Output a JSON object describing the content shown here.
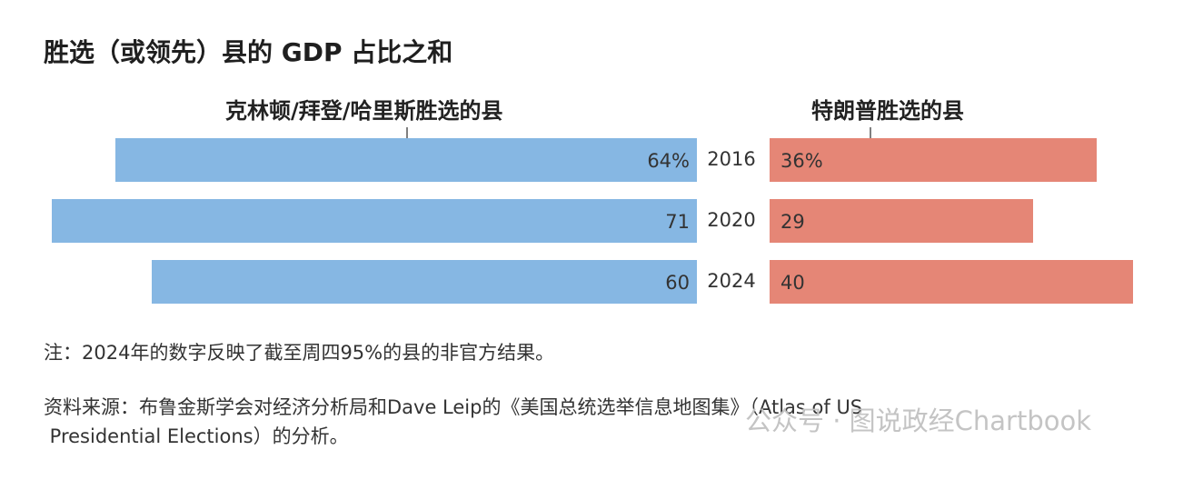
{
  "title": "胜选（或领先）县的 GDP 占比之和",
  "left_header": "克林顿/拜登/哈里斯胜选的县",
  "right_header": "特朗普胜选的县",
  "note": "注：2024年的数字反映了截至周四95%的县的非官方结果。",
  "source_line1": "资料来源：布鲁金斯学会对经济分析局和Dave Leip的《美国总统选举信息地图集》（Atlas of US",
  "source_line2": " Presidential Elections）的分析。",
  "watermark": "公众号 · 图说政经Chartbook",
  "colors": {
    "dem": "#86b7e3",
    "rep": "#e58676"
  },
  "chart_data": {
    "type": "bar",
    "orientation": "horizontal-diverging",
    "categories": [
      "2016",
      "2020",
      "2024"
    ],
    "series": [
      {
        "name": "克林顿/拜登/哈里斯胜选的县",
        "values": [
          64,
          71,
          60
        ],
        "labels": [
          "64%",
          "71",
          "60"
        ]
      },
      {
        "name": "特朗普胜选的县",
        "values": [
          36,
          29,
          40
        ],
        "labels": [
          "36%",
          "29",
          "40"
        ]
      }
    ],
    "unit": "%",
    "xlim": [
      0,
      100
    ]
  }
}
